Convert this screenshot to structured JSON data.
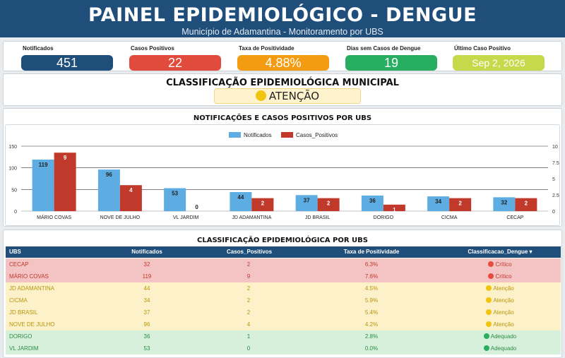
{
  "header": {
    "title": "PAINEL EPIDEMIOLÓGICO - DENGUE",
    "subtitle": "Município de Adamantina - Monitoramento por UBS"
  },
  "kpis": [
    {
      "label": "Notificados",
      "value": "451",
      "color": "#1e4e79"
    },
    {
      "label": "Casos Positivos",
      "value": "22",
      "color": "#e04b3c"
    },
    {
      "label": "Taxa de Positividade",
      "value": "4.88%",
      "color": "#f39c12"
    },
    {
      "label": "Dias sem Casos de Dengue",
      "value": "19",
      "color": "#27ae60"
    },
    {
      "label": "Último Caso Positivo",
      "value": "Sep 2, 2026",
      "color": "#c5d94a"
    }
  ],
  "classificacao": {
    "title": "CLASSIFICAÇÃO EPIDEMIOLÓGICA MUNICIPAL",
    "status": "ATENÇÃO",
    "status_color": "#f1c40f"
  },
  "chart_data": {
    "type": "bar",
    "title": "NOTIFICAÇÕES E CASOS POSITIVOS POR UBS",
    "categories": [
      "MÁRIO COVAS",
      "NOVE DE JULHO",
      "VL JARDIM",
      "JD ADAMANTINA",
      "JD BRASIL",
      "DORIGO",
      "CICMA",
      "CECAP"
    ],
    "series": [
      {
        "name": "Notificados",
        "values": [
          119,
          96,
          53,
          44,
          37,
          36,
          34,
          32
        ],
        "color": "#5dade2",
        "axis": "left"
      },
      {
        "name": "Casos_Positivos",
        "values": [
          9,
          4,
          0,
          2,
          2,
          1,
          2,
          2
        ],
        "color": "#c0392b",
        "axis": "right"
      }
    ],
    "ylim_left": [
      0,
      150
    ],
    "yticks_left": [
      "0",
      "50",
      "100",
      "150"
    ],
    "ylim_right": [
      0,
      10
    ],
    "yticks_right": [
      "0",
      "2.5",
      "5",
      "7.5",
      "10"
    ],
    "legend": "top-center",
    "grid": true
  },
  "table": {
    "title": "CLASSIFICAÇÃO EPIDEMIOLÓGICA POR UBS",
    "headers": [
      "UBS",
      "Notificados",
      "Casos_Positivos",
      "Taxa de Positividade",
      "Classificacao_Dengue ▾"
    ],
    "rows": [
      {
        "ubs": "CECAP",
        "notificados": "32",
        "positivos": "2",
        "taxa": "6.3%",
        "classe": "Crítico",
        "level": "crit"
      },
      {
        "ubs": "MÁRIO COVAS",
        "notificados": "119",
        "positivos": "9",
        "taxa": "7.6%",
        "classe": "Crítico",
        "level": "crit"
      },
      {
        "ubs": "JD ADAMANTINA",
        "notificados": "44",
        "positivos": "2",
        "taxa": "4.5%",
        "classe": "Atenção",
        "level": "aten"
      },
      {
        "ubs": "CICMA",
        "notificados": "34",
        "positivos": "2",
        "taxa": "5.9%",
        "classe": "Atenção",
        "level": "aten"
      },
      {
        "ubs": "JD BRASIL",
        "notificados": "37",
        "positivos": "2",
        "taxa": "5.4%",
        "classe": "Atenção",
        "level": "aten"
      },
      {
        "ubs": "NOVE DE JULHO",
        "notificados": "96",
        "positivos": "4",
        "taxa": "4.2%",
        "classe": "Atenção",
        "level": "aten"
      },
      {
        "ubs": "DORIGO",
        "notificados": "36",
        "positivos": "1",
        "taxa": "2.8%",
        "classe": "Adequado",
        "level": "adeq"
      },
      {
        "ubs": "VL JARDIM",
        "notificados": "53",
        "positivos": "0",
        "taxa": "0.0%",
        "classe": "Adequado",
        "level": "adeq"
      }
    ],
    "level_colors": {
      "crit": "#e74c3c",
      "aten": "#f1c40f",
      "adeq": "#27ae60"
    }
  }
}
